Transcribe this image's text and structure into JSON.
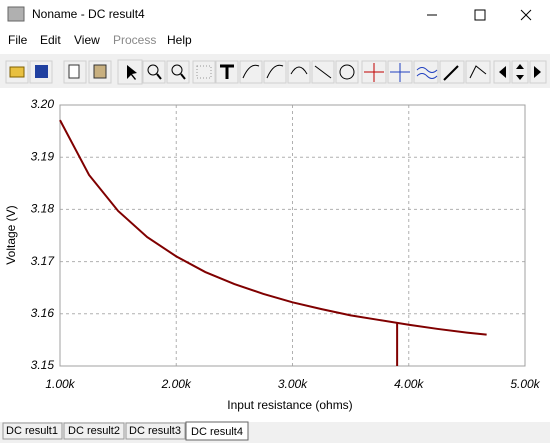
{
  "window": {
    "title": "Noname - DC result4",
    "menu": [
      "File",
      "Edit",
      "View",
      "Process",
      "Help"
    ],
    "tabs": [
      "DC result1",
      "DC result2",
      "DC result3",
      "DC result4"
    ]
  },
  "chart_data": {
    "type": "line",
    "xlabel": "Input resistance (ohms)",
    "ylabel": "Voltage (V)",
    "x": [
      1000,
      1250,
      1500,
      1750,
      2000,
      2250,
      2500,
      2750,
      3000,
      3250,
      3500,
      3750,
      4000,
      4250,
      4500,
      4670
    ],
    "values": [
      3.1971,
      3.1866,
      3.1797,
      3.1747,
      3.171,
      3.168,
      3.1657,
      3.1638,
      3.1622,
      3.1609,
      3.1597,
      3.1588,
      3.1579,
      3.1571,
      3.1564,
      3.156
    ],
    "color": "#800000",
    "cursor_x": 3900,
    "xlim": [
      1000,
      5000
    ],
    "xticks": [
      {
        "value": 1000,
        "label": "1.00k"
      },
      {
        "value": 2000,
        "label": "2.00k"
      },
      {
        "value": 3000,
        "label": "3.00k"
      },
      {
        "value": 4000,
        "label": "4.00k"
      },
      {
        "value": 5000,
        "label": "5.00k"
      }
    ],
    "ylim": [
      3.15,
      3.2
    ],
    "yticks": [
      3.15,
      3.16,
      3.17,
      3.18,
      3.19,
      {
        "value": 3.2,
        "label": "3.20"
      }
    ],
    "grid": true
  }
}
